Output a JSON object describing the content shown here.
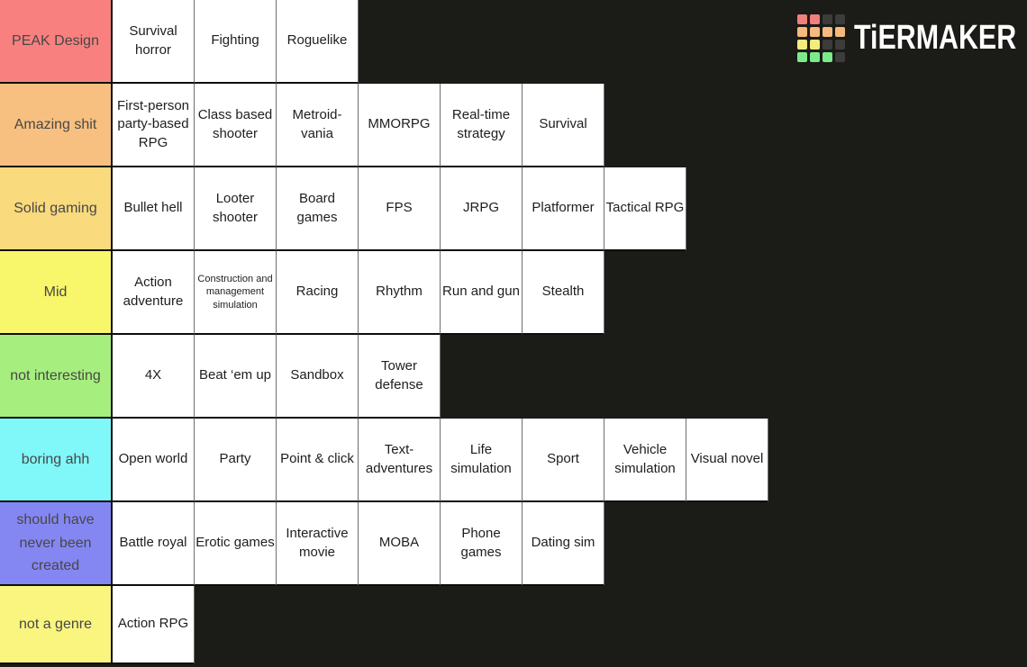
{
  "app": {
    "brand": "TiERMAKER",
    "background_color": "#1b1b18",
    "row_separator_color": "#0d0d0b",
    "cell_separator_color": "#6e6e6e",
    "logo_grid": [
      [
        "#f0807d",
        "#f0807d",
        "#3c3c3a",
        "#3c3c3a"
      ],
      [
        "#f5ba7c",
        "#f5ba7c",
        "#f5ba7c",
        "#f5ba7c"
      ],
      [
        "#f5ec7a",
        "#f5ec7a",
        "#3c3c3a",
        "#3c3c3a"
      ],
      [
        "#7cea8b",
        "#7cea8b",
        "#7cea8b",
        "#3c3c3a"
      ]
    ]
  },
  "tiers": [
    {
      "label": "PEAK Design",
      "color": "#f8817f",
      "items": [
        "Survival horror",
        "Fighting",
        "Roguelike"
      ]
    },
    {
      "label": "Amazing shit",
      "color": "#f8c080",
      "items": [
        "First-person party-based RPG",
        "Class based shooter",
        "Metroid-vania",
        "MMORPG",
        "Real-time strategy",
        "Survival"
      ]
    },
    {
      "label": "Solid gaming",
      "color": "#f9da7c",
      "items": [
        "Bullet hell",
        "Looter shooter",
        "Board games",
        "FPS",
        "JRPG",
        "Platformer",
        "Tactical RPG"
      ]
    },
    {
      "label": "Mid",
      "color": "#f8f76c",
      "items": [
        "Action adventure",
        "Construction and management simulation",
        "Racing",
        "Rhythm",
        "Run and gun",
        "Stealth"
      ]
    },
    {
      "label": "not interesting",
      "color": "#a6ef7e",
      "items": [
        "4X",
        "Beat ‘em up",
        "Sandbox",
        "Tower defense"
      ]
    },
    {
      "label": "boring ahh",
      "color": "#80f7f8",
      "items": [
        "Open world",
        "Party",
        "Point & click",
        "Text-adventures",
        "Life simulation",
        "Sport",
        "Vehicle simulation",
        "Visual novel"
      ]
    },
    {
      "label": "should have never been created",
      "color": "#8487f2",
      "items": [
        "Battle royal",
        "Erotic games",
        "Interactive movie",
        "MOBA",
        "Phone games",
        "Dating sim"
      ]
    },
    {
      "label": "not a genre",
      "color": "#f9f57f",
      "items": [
        "Action RPG"
      ]
    }
  ]
}
